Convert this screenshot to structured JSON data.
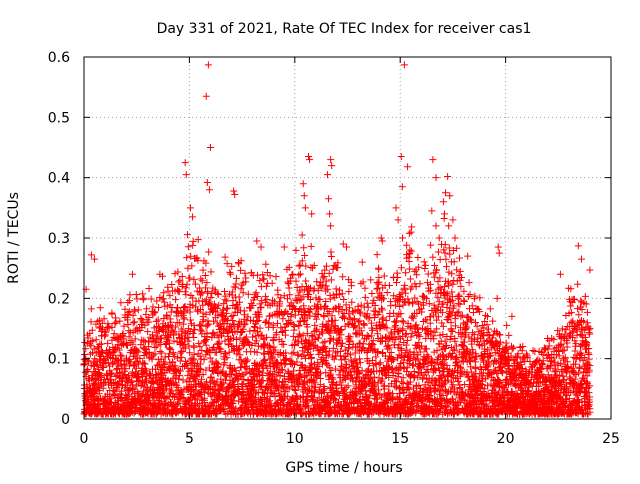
{
  "chart_data": {
    "type": "scatter",
    "title": "Day 331 of 2021, Rate Of TEC Index for receiver cas1",
    "xlabel": "GPS time / hours",
    "ylabel": "ROTI / TECUs",
    "xlim": [
      0,
      25
    ],
    "ylim": [
      0,
      0.6
    ],
    "xticks": [
      0,
      5,
      10,
      15,
      20,
      25
    ],
    "xtick_labels": [
      "0",
      "5",
      "10",
      "15",
      "20",
      "25"
    ],
    "yticks": [
      0,
      0.1,
      0.2,
      0.3,
      0.4,
      0.5,
      0.6
    ],
    "ytick_labels": [
      "0",
      "0.1",
      "0.2",
      "0.3",
      "0.4",
      "0.5",
      "0.6"
    ],
    "grid": true,
    "legend": "none",
    "marker": "plus",
    "color": "#ff0000",
    "series": [
      {
        "sample_interval_hours": 0.0167,
        "envelope_x": [
          0,
          0.5,
          1,
          1.5,
          2,
          2.5,
          3,
          3.5,
          4,
          4.5,
          5,
          5.5,
          6,
          6.5,
          7,
          7.5,
          8,
          8.5,
          9,
          9.5,
          10,
          10.5,
          11,
          11.5,
          12,
          12.5,
          13,
          13.5,
          14,
          14.5,
          15,
          15.5,
          16,
          16.5,
          17,
          17.5,
          18,
          18.5,
          19,
          19.5,
          20,
          20.5,
          21,
          21.5,
          22,
          22.5,
          23,
          23.5,
          24
        ],
        "envelope_typical_max": [
          0.12,
          0.18,
          0.16,
          0.17,
          0.18,
          0.2,
          0.19,
          0.2,
          0.22,
          0.22,
          0.3,
          0.27,
          0.25,
          0.22,
          0.28,
          0.24,
          0.22,
          0.24,
          0.23,
          0.22,
          0.25,
          0.27,
          0.25,
          0.28,
          0.24,
          0.22,
          0.22,
          0.2,
          0.24,
          0.2,
          0.27,
          0.3,
          0.24,
          0.26,
          0.3,
          0.28,
          0.22,
          0.2,
          0.17,
          0.16,
          0.14,
          0.12,
          0.1,
          0.1,
          0.12,
          0.14,
          0.2,
          0.2,
          0.18
        ],
        "points": [
          {
            "x": 5.9,
            "y": 0.587
          },
          {
            "x": 5.8,
            "y": 0.535
          },
          {
            "x": 6.0,
            "y": 0.45
          },
          {
            "x": 4.8,
            "y": 0.425
          },
          {
            "x": 4.85,
            "y": 0.405
          },
          {
            "x": 5.85,
            "y": 0.392
          },
          {
            "x": 5.95,
            "y": 0.38
          },
          {
            "x": 7.1,
            "y": 0.378
          },
          {
            "x": 7.15,
            "y": 0.372
          },
          {
            "x": 5.05,
            "y": 0.35
          },
          {
            "x": 5.15,
            "y": 0.335
          },
          {
            "x": 10.65,
            "y": 0.435
          },
          {
            "x": 10.7,
            "y": 0.43
          },
          {
            "x": 11.7,
            "y": 0.43
          },
          {
            "x": 11.75,
            "y": 0.42
          },
          {
            "x": 11.55,
            "y": 0.405
          },
          {
            "x": 10.4,
            "y": 0.39
          },
          {
            "x": 10.45,
            "y": 0.37
          },
          {
            "x": 10.5,
            "y": 0.35
          },
          {
            "x": 11.6,
            "y": 0.365
          },
          {
            "x": 11.65,
            "y": 0.34
          },
          {
            "x": 11.7,
            "y": 0.32
          },
          {
            "x": 10.8,
            "y": 0.34
          },
          {
            "x": 10.35,
            "y": 0.305
          },
          {
            "x": 15.2,
            "y": 0.587
          },
          {
            "x": 15.05,
            "y": 0.435
          },
          {
            "x": 15.35,
            "y": 0.418
          },
          {
            "x": 16.55,
            "y": 0.43
          },
          {
            "x": 16.7,
            "y": 0.4
          },
          {
            "x": 17.25,
            "y": 0.402
          },
          {
            "x": 15.1,
            "y": 0.385
          },
          {
            "x": 17.15,
            "y": 0.375
          },
          {
            "x": 17.35,
            "y": 0.37
          },
          {
            "x": 17.05,
            "y": 0.36
          },
          {
            "x": 14.8,
            "y": 0.35
          },
          {
            "x": 16.5,
            "y": 0.345
          },
          {
            "x": 17.1,
            "y": 0.34
          },
          {
            "x": 17.5,
            "y": 0.33
          },
          {
            "x": 14.9,
            "y": 0.33
          },
          {
            "x": 16.7,
            "y": 0.32
          },
          {
            "x": 17.3,
            "y": 0.32
          },
          {
            "x": 17.6,
            "y": 0.3
          },
          {
            "x": 16.85,
            "y": 0.3
          },
          {
            "x": 14.1,
            "y": 0.3
          },
          {
            "x": 14.15,
            "y": 0.295
          },
          {
            "x": 19.65,
            "y": 0.285
          },
          {
            "x": 19.7,
            "y": 0.275
          },
          {
            "x": 23.45,
            "y": 0.287
          },
          {
            "x": 23.6,
            "y": 0.265
          },
          {
            "x": 0.35,
            "y": 0.272
          },
          {
            "x": 0.5,
            "y": 0.265
          },
          {
            "x": 8.2,
            "y": 0.295
          },
          {
            "x": 8.4,
            "y": 0.285
          },
          {
            "x": 12.3,
            "y": 0.29
          },
          {
            "x": 12.45,
            "y": 0.285
          },
          {
            "x": 9.5,
            "y": 0.285
          },
          {
            "x": 18.2,
            "y": 0.27
          },
          {
            "x": 13.2,
            "y": 0.26
          },
          {
            "x": 0.1,
            "y": 0.215
          },
          {
            "x": 2.3,
            "y": 0.24
          },
          {
            "x": 3.6,
            "y": 0.24
          },
          {
            "x": 22.6,
            "y": 0.24
          },
          {
            "x": 24.0,
            "y": 0.247
          },
          {
            "x": 19.6,
            "y": 0.2
          },
          {
            "x": 20.3,
            "y": 0.17
          }
        ]
      }
    ]
  }
}
